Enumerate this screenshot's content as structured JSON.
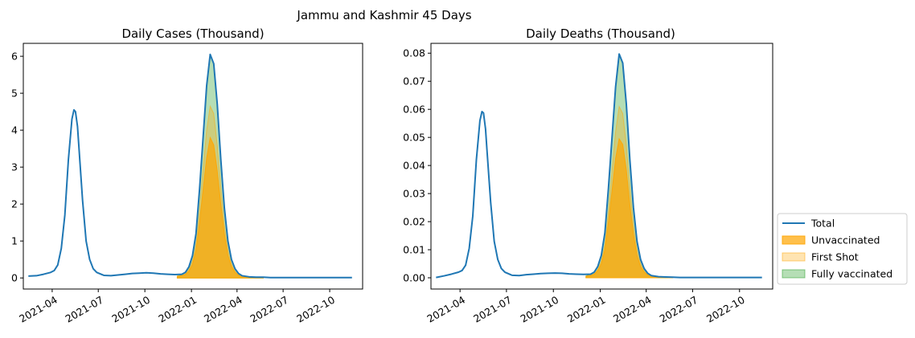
{
  "figure": {
    "suptitle": "Jammu and Kashmir 45 Days"
  },
  "chart_data": [
    {
      "type": "area",
      "title": "Daily Cases (Thousand)",
      "xlabel": "",
      "ylabel": "",
      "ylim": [
        -0.3,
        6.35
      ],
      "y_ticks": [
        0,
        1,
        2,
        3,
        4,
        5,
        6
      ],
      "y_tick_labels": [
        "0",
        "1",
        "2",
        "3",
        "4",
        "5",
        "6"
      ],
      "x_ticks": [
        "2021-04-01",
        "2021-07-01",
        "2021-10-01",
        "2022-01-01",
        "2022-04-01",
        "2022-07-01",
        "2022-10-01"
      ],
      "x_tick_labels": [
        "2021-04",
        "2021-07",
        "2021-10",
        "2022-01",
        "2022-04",
        "2022-07",
        "2022-10"
      ],
      "xlim": [
        "2021-02-03",
        "2022-12-05"
      ],
      "grid": false,
      "series": [
        {
          "name": "Total",
          "kind": "line",
          "color": "#1f77b4",
          "x": [
            "2021-02-13",
            "2021-03-01",
            "2021-03-15",
            "2021-03-29",
            "2021-04-05",
            "2021-04-12",
            "2021-04-19",
            "2021-04-26",
            "2021-05-03",
            "2021-05-10",
            "2021-05-14",
            "2021-05-17",
            "2021-05-21",
            "2021-05-24",
            "2021-05-31",
            "2021-06-07",
            "2021-06-14",
            "2021-06-21",
            "2021-06-28",
            "2021-07-12",
            "2021-07-26",
            "2021-08-09",
            "2021-08-23",
            "2021-09-06",
            "2021-09-20",
            "2021-10-04",
            "2021-10-18",
            "2021-11-01",
            "2021-11-15",
            "2021-11-29",
            "2021-12-13",
            "2021-12-20",
            "2021-12-27",
            "2022-01-03",
            "2022-01-10",
            "2022-01-17",
            "2022-01-24",
            "2022-01-31",
            "2022-02-07",
            "2022-02-14",
            "2022-02-21",
            "2022-02-28",
            "2022-03-07",
            "2022-03-14",
            "2022-03-21",
            "2022-03-28",
            "2022-04-04",
            "2022-04-11",
            "2022-04-25",
            "2022-05-09",
            "2022-05-23",
            "2022-06-06",
            "2022-07-04",
            "2022-08-01",
            "2022-08-29",
            "2022-09-26",
            "2022-10-24",
            "2022-11-14"
          ],
          "values": [
            0.05,
            0.06,
            0.1,
            0.15,
            0.2,
            0.35,
            0.8,
            1.7,
            3.2,
            4.3,
            4.55,
            4.5,
            4.1,
            3.5,
            2.1,
            1.0,
            0.5,
            0.25,
            0.15,
            0.07,
            0.06,
            0.08,
            0.1,
            0.12,
            0.13,
            0.14,
            0.13,
            0.11,
            0.1,
            0.09,
            0.1,
            0.15,
            0.3,
            0.6,
            1.2,
            2.4,
            3.8,
            5.2,
            6.05,
            5.8,
            4.7,
            3.2,
            1.9,
            1.0,
            0.5,
            0.25,
            0.12,
            0.06,
            0.03,
            0.02,
            0.02,
            0.01,
            0.01,
            0.01,
            0.01,
            0.01,
            0.01,
            0.01
          ]
        },
        {
          "name": "Unvaccinated",
          "kind": "fill",
          "color": "#ffa500",
          "opacity": 0.7,
          "x": [
            "2021-12-04",
            "2021-12-13",
            "2021-12-20",
            "2021-12-27",
            "2022-01-03",
            "2022-01-10",
            "2022-01-17",
            "2022-01-24",
            "2022-01-31",
            "2022-02-07",
            "2022-02-14",
            "2022-02-21",
            "2022-02-28",
            "2022-03-07",
            "2022-03-14",
            "2022-03-21",
            "2022-03-28",
            "2022-04-04",
            "2022-04-11",
            "2022-04-25",
            "2022-05-09",
            "2022-05-23"
          ],
          "values": [
            0.04,
            0.06,
            0.09,
            0.18,
            0.37,
            0.75,
            1.5,
            2.4,
            3.25,
            3.8,
            3.6,
            2.9,
            2.0,
            1.2,
            0.62,
            0.31,
            0.15,
            0.07,
            0.04,
            0.02,
            0.01,
            0.01
          ]
        },
        {
          "name": "First Shot",
          "kind": "fill",
          "color": "#ffa500",
          "opacity": 0.3,
          "x": [
            "2021-12-04",
            "2021-12-13",
            "2021-12-20",
            "2021-12-27",
            "2022-01-03",
            "2022-01-10",
            "2022-01-17",
            "2022-01-24",
            "2022-01-31",
            "2022-02-07",
            "2022-02-14",
            "2022-02-21",
            "2022-02-28",
            "2022-03-07",
            "2022-03-14",
            "2022-03-21",
            "2022-03-28",
            "2022-04-04",
            "2022-04-11",
            "2022-04-25",
            "2022-05-09",
            "2022-05-23"
          ],
          "values": [
            0.05,
            0.07,
            0.11,
            0.23,
            0.46,
            0.93,
            1.85,
            2.95,
            4.0,
            4.65,
            4.45,
            3.6,
            2.45,
            1.45,
            0.77,
            0.38,
            0.19,
            0.09,
            0.05,
            0.02,
            0.01,
            0.01
          ]
        },
        {
          "name": "Fully vaccinated",
          "kind": "fill",
          "color": "#2ca02c",
          "opacity": 0.35,
          "x": [
            "2021-12-04",
            "2021-12-13",
            "2021-12-20",
            "2021-12-27",
            "2022-01-03",
            "2022-01-10",
            "2022-01-17",
            "2022-01-24",
            "2022-01-31",
            "2022-02-07",
            "2022-02-14",
            "2022-02-21",
            "2022-02-28",
            "2022-03-07",
            "2022-03-14",
            "2022-03-21",
            "2022-03-28",
            "2022-04-04",
            "2022-04-11",
            "2022-04-25",
            "2022-05-09",
            "2022-05-23"
          ],
          "values": [
            0.05,
            0.09,
            0.15,
            0.3,
            0.6,
            1.2,
            2.4,
            3.8,
            5.2,
            6.05,
            5.8,
            4.7,
            3.2,
            1.9,
            1.0,
            0.5,
            0.25,
            0.12,
            0.06,
            0.03,
            0.02,
            0.01
          ]
        }
      ]
    },
    {
      "type": "area",
      "title": "Daily Deaths (Thousand)",
      "xlabel": "",
      "ylabel": "",
      "ylim": [
        -0.004,
        0.0835
      ],
      "y_ticks": [
        0,
        0.01,
        0.02,
        0.03,
        0.04,
        0.05,
        0.06,
        0.07,
        0.08
      ],
      "y_tick_labels": [
        "0.00",
        "0.01",
        "0.02",
        "0.03",
        "0.04",
        "0.05",
        "0.06",
        "0.07",
        "0.08"
      ],
      "x_ticks": [
        "2021-04-01",
        "2021-07-01",
        "2021-10-01",
        "2022-01-01",
        "2022-04-01",
        "2022-07-01",
        "2022-10-01"
      ],
      "x_tick_labels": [
        "2021-04",
        "2021-07",
        "2021-10",
        "2022-01",
        "2022-04",
        "2022-07",
        "2022-10"
      ],
      "xlim": [
        "2021-02-03",
        "2022-12-05"
      ],
      "grid": false,
      "series": [
        {
          "name": "Total",
          "kind": "line",
          "color": "#1f77b4",
          "x": [
            "2021-02-13",
            "2021-03-01",
            "2021-03-15",
            "2021-03-29",
            "2021-04-05",
            "2021-04-12",
            "2021-04-19",
            "2021-04-26",
            "2021-05-03",
            "2021-05-10",
            "2021-05-14",
            "2021-05-17",
            "2021-05-21",
            "2021-05-24",
            "2021-05-31",
            "2021-06-07",
            "2021-06-14",
            "2021-06-21",
            "2021-06-28",
            "2021-07-12",
            "2021-07-26",
            "2021-08-09",
            "2021-08-23",
            "2021-09-06",
            "2021-09-20",
            "2021-10-04",
            "2021-10-18",
            "2021-11-01",
            "2021-11-15",
            "2021-11-29",
            "2021-12-13",
            "2021-12-20",
            "2021-12-27",
            "2022-01-03",
            "2022-01-10",
            "2022-01-17",
            "2022-01-24",
            "2022-01-31",
            "2022-02-07",
            "2022-02-14",
            "2022-02-21",
            "2022-02-28",
            "2022-03-07",
            "2022-03-14",
            "2022-03-21",
            "2022-03-28",
            "2022-04-04",
            "2022-04-11",
            "2022-04-25",
            "2022-05-09",
            "2022-05-23",
            "2022-06-06",
            "2022-07-04",
            "2022-08-01",
            "2022-08-29",
            "2022-09-26",
            "2022-10-24",
            "2022-11-14"
          ],
          "values": [
            0.0001,
            0.0007,
            0.0013,
            0.002,
            0.0026,
            0.0045,
            0.0105,
            0.022,
            0.042,
            0.056,
            0.0592,
            0.0587,
            0.053,
            0.045,
            0.027,
            0.013,
            0.0065,
            0.0033,
            0.002,
            0.0009,
            0.0008,
            0.0011,
            0.0013,
            0.0015,
            0.0016,
            0.0017,
            0.0016,
            0.0014,
            0.0013,
            0.0012,
            0.0013,
            0.002,
            0.004,
            0.008,
            0.016,
            0.032,
            0.05,
            0.068,
            0.0797,
            0.0765,
            0.062,
            0.042,
            0.025,
            0.013,
            0.0065,
            0.0033,
            0.0016,
            0.0008,
            0.0004,
            0.0003,
            0.0002,
            0.0001,
            0.0001,
            0.0001,
            0.0001,
            0.0001,
            0.0001,
            0.0001
          ]
        },
        {
          "name": "Unvaccinated",
          "kind": "fill",
          "color": "#ffa500",
          "opacity": 0.7,
          "x": [
            "2021-12-04",
            "2021-12-13",
            "2021-12-20",
            "2021-12-27",
            "2022-01-03",
            "2022-01-10",
            "2022-01-17",
            "2022-01-24",
            "2022-01-31",
            "2022-02-07",
            "2022-02-14",
            "2022-02-21",
            "2022-02-28",
            "2022-03-07",
            "2022-03-14",
            "2022-03-21",
            "2022-03-28",
            "2022-04-04",
            "2022-04-11",
            "2022-04-25",
            "2022-05-09",
            "2022-05-23"
          ],
          "values": [
            0.0005,
            0.0008,
            0.0012,
            0.0025,
            0.005,
            0.01,
            0.02,
            0.031,
            0.0425,
            0.0495,
            0.0475,
            0.0385,
            0.026,
            0.0155,
            0.008,
            0.004,
            0.002,
            0.001,
            0.0005,
            0.0002,
            0.0001,
            0.0001
          ]
        },
        {
          "name": "First Shot",
          "kind": "fill",
          "color": "#ffa500",
          "opacity": 0.3,
          "x": [
            "2021-12-04",
            "2021-12-13",
            "2021-12-20",
            "2021-12-27",
            "2022-01-03",
            "2022-01-10",
            "2022-01-17",
            "2022-01-24",
            "2022-01-31",
            "2022-02-07",
            "2022-02-14",
            "2022-02-21",
            "2022-02-28",
            "2022-03-07",
            "2022-03-14",
            "2022-03-21",
            "2022-03-28",
            "2022-04-04",
            "2022-04-11",
            "2022-04-25",
            "2022-05-09",
            "2022-05-23"
          ],
          "values": [
            0.0006,
            0.001,
            0.0015,
            0.003,
            0.006,
            0.012,
            0.024,
            0.038,
            0.052,
            0.061,
            0.0585,
            0.0475,
            0.032,
            0.019,
            0.01,
            0.005,
            0.0025,
            0.0012,
            0.0006,
            0.0003,
            0.0001,
            0.0001
          ]
        },
        {
          "name": "Fully vaccinated",
          "kind": "fill",
          "color": "#2ca02c",
          "opacity": 0.35,
          "x": [
            "2021-12-04",
            "2021-12-13",
            "2021-12-20",
            "2021-12-27",
            "2022-01-03",
            "2022-01-10",
            "2022-01-17",
            "2022-01-24",
            "2022-01-31",
            "2022-02-07",
            "2022-02-14",
            "2022-02-21",
            "2022-02-28",
            "2022-03-07",
            "2022-03-14",
            "2022-03-21",
            "2022-03-28",
            "2022-04-04",
            "2022-04-11",
            "2022-04-25",
            "2022-05-09",
            "2022-05-23"
          ],
          "values": [
            0.0007,
            0.0013,
            0.002,
            0.004,
            0.008,
            0.016,
            0.032,
            0.05,
            0.068,
            0.0797,
            0.0765,
            0.062,
            0.042,
            0.025,
            0.013,
            0.0065,
            0.0033,
            0.0016,
            0.0008,
            0.0004,
            0.0002,
            0.0001
          ]
        }
      ]
    }
  ],
  "legend": {
    "placement": "right of second chart, bottom",
    "entries": [
      {
        "label": "Total",
        "kind": "line",
        "color": "#1f77b4"
      },
      {
        "label": "Unvaccinated",
        "kind": "fill",
        "color": "#ffa500",
        "opacity": 0.7
      },
      {
        "label": "First Shot",
        "kind": "fill",
        "color": "#ffa500",
        "opacity": 0.3
      },
      {
        "label": "Fully vaccinated",
        "kind": "fill",
        "color": "#2ca02c",
        "opacity": 0.35
      }
    ]
  }
}
